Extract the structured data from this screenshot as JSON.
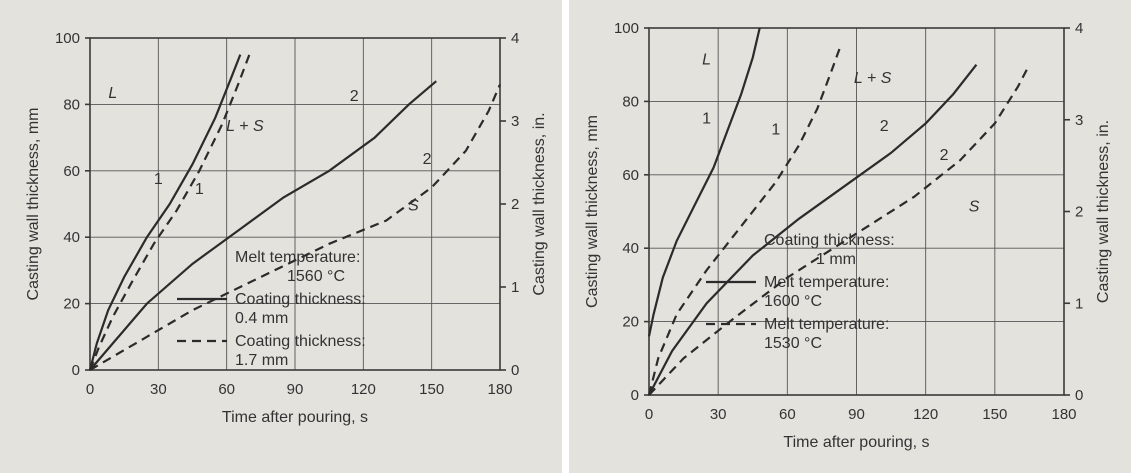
{
  "chart_data": [
    {
      "type": "line",
      "xlabel": "Time after pouring, s",
      "ylabel": "Casting wall thickness, mm",
      "y2label": "Casting wall thickness, in.",
      "xlim": [
        0,
        180
      ],
      "ylim": [
        0,
        100
      ],
      "y2lim": [
        0,
        4
      ],
      "x_ticks": [
        "0",
        "30",
        "60",
        "90",
        "120",
        "150",
        "180"
      ],
      "y_ticks": [
        "0",
        "20",
        "40",
        "60",
        "80",
        "100"
      ],
      "y2_ticks": [
        "0",
        "1",
        "2",
        "3",
        "4"
      ],
      "grid": true,
      "region_labels": [
        "L",
        "L + S",
        "S"
      ],
      "legend": [
        {
          "text": "Melt temperature:",
          "text2": "1560 °C",
          "style": "none"
        },
        {
          "text": "Coating thickness:",
          "text2": "0.4 mm",
          "style": "solid"
        },
        {
          "text": "Coating thickness:",
          "text2": "1.7 mm",
          "style": "dashed"
        }
      ],
      "series": [
        {
          "label": "1",
          "style": "solid",
          "x": [
            0,
            3,
            8,
            15,
            25,
            35,
            45,
            55,
            62,
            66
          ],
          "y": [
            0,
            8,
            18,
            28,
            40,
            50,
            62,
            76,
            88,
            95
          ]
        },
        {
          "label": "1",
          "style": "dashed",
          "x": [
            0,
            4,
            10,
            18,
            28,
            38,
            48,
            58,
            65,
            70
          ],
          "y": [
            0,
            7,
            16,
            26,
            38,
            48,
            60,
            74,
            86,
            95
          ]
        },
        {
          "label": "2",
          "style": "solid",
          "x": [
            0,
            10,
            25,
            45,
            65,
            85,
            105,
            125,
            140,
            152
          ],
          "y": [
            0,
            8,
            20,
            32,
            42,
            52,
            60,
            70,
            80,
            87
          ]
        },
        {
          "label": "2",
          "style": "dashed",
          "x": [
            0,
            20,
            45,
            75,
            105,
            130,
            150,
            165,
            175,
            180
          ],
          "y": [
            0,
            8,
            18,
            28,
            38,
            45,
            55,
            66,
            78,
            86
          ]
        }
      ]
    },
    {
      "type": "line",
      "xlabel": "Time after pouring, s",
      "ylabel": "Casting wall thickness, mm",
      "y2label": "Casting wall thickness, in.",
      "xlim": [
        0,
        180
      ],
      "ylim": [
        0,
        100
      ],
      "y2lim": [
        0,
        4
      ],
      "x_ticks": [
        "0",
        "30",
        "60",
        "90",
        "120",
        "150",
        "180"
      ],
      "y_ticks": [
        "0",
        "20",
        "40",
        "60",
        "80",
        "100"
      ],
      "y2_ticks": [
        "0",
        "1",
        "2",
        "3",
        "4"
      ],
      "grid": true,
      "region_labels": [
        "L",
        "L + S",
        "S"
      ],
      "legend": [
        {
          "text": "Coating thickness:",
          "text2": "1 mm",
          "style": "none"
        },
        {
          "text": "Melt temperature:",
          "text2": "1600 °C",
          "style": "solid"
        },
        {
          "text": "Melt temperature:",
          "text2": "1530 °C",
          "style": "dashed"
        }
      ],
      "series": [
        {
          "label": "1",
          "style": "solid",
          "x": [
            0,
            2,
            6,
            12,
            20,
            28,
            34,
            40,
            45,
            48
          ],
          "y": [
            16,
            22,
            32,
            42,
            52,
            62,
            72,
            82,
            92,
            100
          ]
        },
        {
          "label": "1",
          "style": "dashed",
          "x": [
            0,
            4,
            12,
            25,
            40,
            55,
            65,
            73,
            79,
            83
          ],
          "y": [
            0,
            10,
            22,
            34,
            46,
            58,
            68,
            78,
            88,
            95
          ]
        },
        {
          "label": "2",
          "style": "solid",
          "x": [
            0,
            10,
            25,
            45,
            65,
            85,
            105,
            120,
            132,
            142
          ],
          "y": [
            0,
            12,
            25,
            38,
            48,
            57,
            66,
            74,
            82,
            90
          ]
        },
        {
          "label": "2",
          "style": "dashed",
          "x": [
            0,
            15,
            35,
            60,
            90,
            115,
            135,
            150,
            160,
            165
          ],
          "y": [
            0,
            10,
            20,
            32,
            44,
            54,
            64,
            74,
            84,
            90
          ]
        }
      ]
    }
  ]
}
